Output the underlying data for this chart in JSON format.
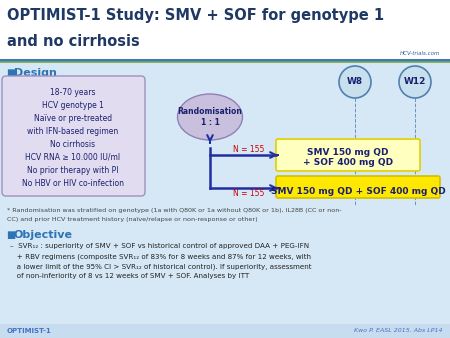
{
  "title_line1": "OPTIMIST-1 Study: SMV + SOF for genotype 1",
  "title_line2": "and no cirrhosis",
  "title_color": "#1F3864",
  "title_fontsize": 10.5,
  "bg_color": "#D6E8F5",
  "header_bg": "#FFFFFF",
  "header_line_color1": "#4472C4",
  "header_line_color2": "#70AD47",
  "design_label": "Design",
  "section_color": "#2E74B5",
  "criteria_lines": [
    "18-70 years",
    "HCV genotype 1",
    "Naïve or pre-treated",
    "with IFN-based regimen",
    "No cirrhosis",
    "HCV RNA ≥ 10.000 IU/ml",
    "No prior therapy with PI",
    "No HBV or HIV co-infection"
  ],
  "criteria_box_bg": "#E2DCF0",
  "criteria_box_border": "#A090C0",
  "randomisation_text": "Randomisation\n1 : 1",
  "randomisation_ellipse_color": "#C8C0DC",
  "randomisation_border": "#9080B8",
  "arm1_label_line1": "SMV 150 mg QD",
  "arm1_label_line2": "+ SOF 400 mg QD",
  "arm1_bg": "#FFFFC0",
  "arm1_border": "#E0D000",
  "arm2_label": "SMV 150 mg QD + SOF 400 mg QD",
  "arm2_bg": "#FFE800",
  "arm2_border": "#D0C000",
  "n_label": "N = 155",
  "n_color": "#CC0000",
  "w8_label": "W8",
  "w12_label": "W12",
  "circle_bg": "#C8E0EE",
  "circle_border": "#5080B0",
  "arrow_color": "#2030A0",
  "objective_label": "Objective",
  "footer_left": "OPTIMIST-1",
  "footer_right": "Kwo P. EASL 2015. Abs LP14",
  "footer_color": "#4472C4",
  "footer_bg": "#C8DCF0"
}
